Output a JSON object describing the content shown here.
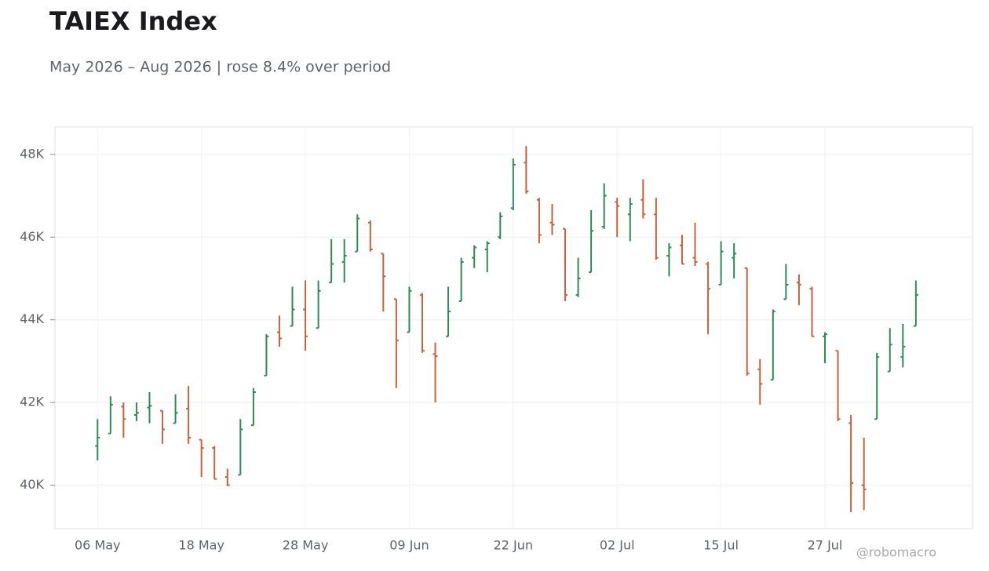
{
  "chart_data": {
    "type": "ohlc",
    "title": "TAIEX Index",
    "subtitle": "May 2026 – Aug 2026 | rose 8.4% over period",
    "watermark": "@robomacro",
    "categories": [
      "06 May",
      null,
      null,
      null,
      null,
      null,
      null,
      null,
      "18 May",
      null,
      null,
      null,
      null,
      null,
      null,
      null,
      "28 May",
      null,
      null,
      null,
      null,
      null,
      null,
      null,
      "09 Jun",
      null,
      null,
      null,
      null,
      null,
      null,
      null,
      "22 Jun",
      null,
      null,
      null,
      null,
      null,
      null,
      null,
      "02 Jul",
      null,
      null,
      null,
      null,
      null,
      null,
      null,
      "15 Jul",
      null,
      null,
      null,
      null,
      null,
      null,
      null,
      "27 Jul",
      null,
      null,
      null,
      null,
      null,
      null,
      null
    ],
    "open": [
      40950,
      41250,
      41900,
      41700,
      41880,
      41800,
      41500,
      41850,
      41100,
      40900,
      40200,
      40250,
      41450,
      42650,
      43700,
      43850,
      44250,
      43800,
      44900,
      45400,
      45650,
      46350,
      45600,
      44500,
      43700,
      44600,
      43170,
      43600,
      44450,
      45500,
      45700,
      46000,
      46700,
      47800,
      46900,
      46350,
      46200,
      44600,
      45150,
      46250,
      46850,
      46550,
      46900,
      46550,
      45550,
      45800,
      45500,
      45350,
      44850,
      45500,
      45250,
      42800,
      42550,
      44500,
      44900,
      44750,
      43600,
      43250,
      41500,
      40000,
      41600,
      42750,
      43100,
      43850
    ],
    "high": [
      41600,
      42150,
      42000,
      42000,
      42250,
      41800,
      42200,
      42400,
      41100,
      40950,
      40400,
      41600,
      42350,
      43650,
      44100,
      44800,
      44950,
      44950,
      45950,
      45950,
      46550,
      46400,
      45600,
      44500,
      44800,
      44650,
      43450,
      44800,
      45500,
      45800,
      45900,
      46600,
      47900,
      48200,
      46950,
      46800,
      46200,
      45500,
      46650,
      47300,
      46950,
      46950,
      47400,
      46950,
      45850,
      46050,
      46350,
      45400,
      45900,
      45850,
      45250,
      43050,
      44250,
      45350,
      45100,
      44800,
      43700,
      43250,
      41700,
      41150,
      43200,
      43800,
      43900,
      44950
    ],
    "low": [
      40600,
      41250,
      41150,
      41550,
      41500,
      41000,
      41500,
      41000,
      40200,
      40150,
      39980,
      40250,
      41450,
      42650,
      43350,
      43850,
      43250,
      43800,
      44900,
      44900,
      45650,
      45650,
      44200,
      42350,
      43700,
      43200,
      42000,
      43600,
      44450,
      45250,
      45150,
      45950,
      46650,
      47050,
      45850,
      46050,
      44450,
      44550,
      45150,
      46200,
      46000,
      45900,
      46450,
      45450,
      45050,
      45350,
      45300,
      43650,
      44850,
      45000,
      42650,
      41950,
      42550,
      44500,
      44350,
      43600,
      42950,
      41550,
      39350,
      39400,
      41600,
      42750,
      42850,
      43850
    ],
    "close": [
      41150,
      41950,
      41600,
      41750,
      41920,
      41350,
      41750,
      41150,
      40900,
      40150,
      40000,
      41350,
      42250,
      43600,
      43550,
      44250,
      43600,
      44700,
      45350,
      45550,
      46450,
      45700,
      45050,
      43500,
      44700,
      43250,
      43120,
      44200,
      45400,
      45750,
      45850,
      46500,
      47750,
      47100,
      46050,
      46300,
      44600,
      45000,
      46150,
      47000,
      46750,
      46800,
      46550,
      45500,
      45750,
      45350,
      45400,
      44750,
      45650,
      45600,
      42700,
      42450,
      44200,
      44850,
      44850,
      43600,
      43650,
      41600,
      40050,
      39900,
      43100,
      43400,
      43350,
      44600
    ],
    "up_color": "#2e8b57",
    "down_color": "#c8623c",
    "ylim": [
      38950,
      48660
    ],
    "yticks": [
      {
        "value": 40000,
        "label": "40K"
      },
      {
        "value": 42000,
        "label": "42K"
      },
      {
        "value": 44000,
        "label": "44K"
      },
      {
        "value": 46000,
        "label": "46K"
      },
      {
        "value": 48000,
        "label": "48K"
      }
    ],
    "grid": true
  }
}
